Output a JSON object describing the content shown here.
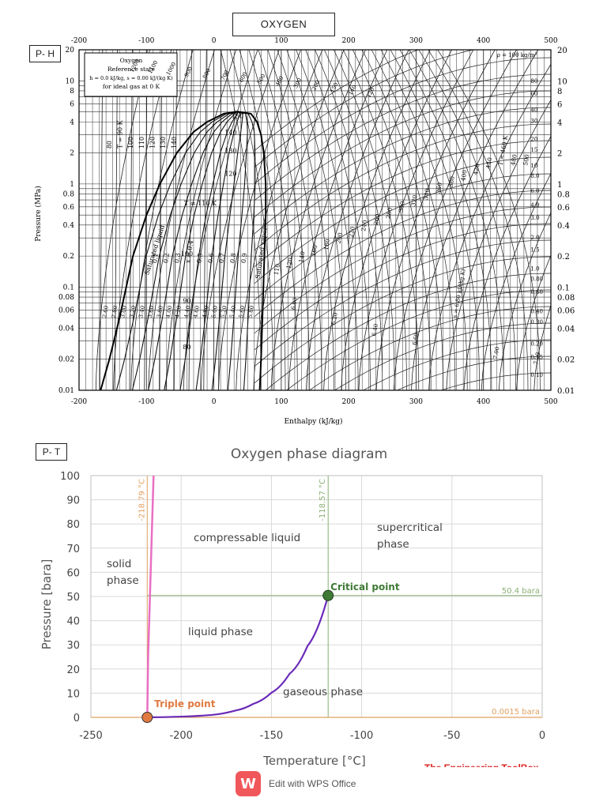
{
  "header": {
    "title": "OXYGEN"
  },
  "ph_label": "P- H",
  "pt_label": "P- T",
  "chart_data": [
    {
      "type": "line",
      "subtype": "pressure-enthalpy diagram",
      "xlabel": "Enthalpy (kJ/kg)",
      "ylabel": "Pressure (MPa)",
      "xlim": [
        -200,
        500
      ],
      "ylim": [
        0.01,
        20
      ],
      "yscale": "log",
      "grid": true,
      "x_ticks": [
        "-200",
        "-100",
        "0",
        "100",
        "200",
        "300",
        "400",
        "500"
      ],
      "y_ticks_left": [
        "0.01",
        "0.02",
        "0.04",
        "0.06",
        "0.08",
        "0.1",
        "0.2",
        "0.4",
        "0.6",
        "0.8",
        "1",
        "2",
        "4",
        "6",
        "8",
        "10",
        "20"
      ],
      "y_ticks_right": [
        "0.01",
        "0.02",
        "0.04",
        "0.06",
        "0.08",
        "0.1",
        "0.2",
        "0.4",
        "0.6",
        "0.8",
        "1",
        "2",
        "4",
        "6",
        "8",
        "10",
        "20"
      ],
      "legend_box": [
        "Oxygen",
        "Reference state",
        "h = 0.0 kJ/kg, s = 0.00 kJ/(kg K)",
        "for ideal gas at 0 K"
      ],
      "dome": {
        "liquid": [
          [
            -168,
            0.01
          ],
          [
            -155,
            0.02
          ],
          [
            -140,
            0.05
          ],
          [
            -120,
            0.2
          ],
          [
            -100,
            0.5
          ],
          [
            -80,
            1.0
          ],
          [
            -55,
            2.0
          ],
          [
            -30,
            3.2
          ],
          [
            -10,
            4.0
          ],
          [
            15,
            4.8
          ],
          [
            35,
            5.04
          ]
        ],
        "vapor": [
          [
            35,
            5.04
          ],
          [
            55,
            4.8
          ],
          [
            64,
            4.0
          ],
          [
            70,
            3.0
          ],
          [
            74,
            2.0
          ],
          [
            77,
            1.0
          ],
          [
            77,
            0.5
          ],
          [
            75,
            0.2
          ],
          [
            72,
            0.05
          ],
          [
            70,
            0.02
          ],
          [
            68,
            0.01
          ]
        ],
        "labels": [
          "Saturated liquid",
          "Saturated vapor"
        ],
        "critical_label": "150"
      },
      "isotherm_labels_in_dome": [
        "140",
        "130",
        "120",
        "T = 110 K",
        "100",
        "90",
        "80"
      ],
      "isotherm_labels_left": [
        "80",
        "T = 90 K",
        "100",
        "110",
        "120",
        "130",
        "140"
      ],
      "isotherm_labels_vapor": [
        "110",
        "120",
        "140",
        "160",
        "180",
        "200",
        "220",
        "240",
        "260",
        "280",
        "300",
        "320",
        "340",
        "360",
        "380",
        "400",
        "420",
        "440",
        "T = 460 K",
        "480",
        "500"
      ],
      "isotherm_labels_top": [
        "1200",
        "1100",
        "1000",
        "900",
        "800",
        "700",
        "600",
        "500",
        "400",
        "300",
        "200",
        "150",
        "140",
        "120"
      ],
      "quality_labels": [
        "0.1",
        "0.2",
        "0.3",
        "x = 0.4",
        "0.5",
        "0.6",
        "0.7",
        "0.8",
        "0.9"
      ],
      "entropy_labels": [
        "2.60",
        "2.80",
        "3.00",
        "3.20",
        "3.40",
        "3.60",
        "3.80",
        "4.00",
        "4.20",
        "4.40",
        "4.60",
        "4.80",
        "5.00",
        "5.20",
        "5.40",
        "5.60",
        "5.80",
        "6.00",
        "6.20",
        "6.40",
        "6.60",
        "s = 6.80 kJ/(kg K)",
        "7.00",
        "7.20"
      ],
      "density_labels": [
        "ρ = 100 kg/m³",
        "80",
        "60",
        "40",
        "30",
        "20",
        "15",
        "10",
        "8.0",
        "6.0",
        "4.0",
        "3.0",
        "2.0",
        "1.5",
        "1.0",
        "0.80",
        "0.60",
        "0.40",
        "0.30",
        "0.20",
        "0.15",
        "0.10"
      ]
    },
    {
      "type": "line",
      "title": "Oxygen phase diagram",
      "xlabel": "Temperature [°C]",
      "ylabel": "Pressure [bara]",
      "xlim": [
        -250,
        0
      ],
      "ylim": [
        0,
        100
      ],
      "grid": true,
      "x_ticks": [
        "-250",
        "-200",
        "-150",
        "-100",
        "-50",
        "0"
      ],
      "y_ticks": [
        "0",
        "10",
        "20",
        "30",
        "40",
        "50",
        "60",
        "70",
        "80",
        "90",
        "100"
      ],
      "series": [
        {
          "name": "sublimation/melting",
          "color": "#e86fc3",
          "x": [
            -218.79,
            -218.3,
            -217.3,
            -216.3,
            -215.3
          ],
          "y": [
            0.0015,
            25,
            50,
            75,
            100
          ]
        },
        {
          "name": "vaporization",
          "color": "#6a2bb8",
          "x": [
            -218.79,
            -200,
            -182.96,
            -170,
            -160,
            -150,
            -140,
            -130,
            -118.57
          ],
          "y": [
            0.0015,
            0.3,
            1.01,
            2.8,
            5.6,
            10.2,
            18.0,
            29.5,
            50.4
          ]
        }
      ],
      "reference_lines": [
        {
          "label": "-218.79 °C",
          "x": -218.79,
          "color": "#e0a060"
        },
        {
          "label": "-118.57 °C",
          "x": -118.57,
          "color": "#8aaf72"
        },
        {
          "label": "50.4 bara",
          "y": 50.4,
          "color": "#8aaf72"
        },
        {
          "label": "0.0015 bara",
          "y": 0,
          "color": "#e0a060"
        }
      ],
      "points": [
        {
          "label": "Triple point",
          "x": -218.79,
          "y": 0.0015,
          "color": "#e07a40"
        },
        {
          "label": "Critical point",
          "x": -118.57,
          "y": 50.4,
          "color": "#3f7a35"
        }
      ],
      "regions": [
        {
          "label": "solid phase",
          "lines": [
            "solid",
            "phase"
          ]
        },
        {
          "label": "compressable liquid",
          "lines": [
            "compressable liquid"
          ]
        },
        {
          "label": "supercritical phase",
          "lines": [
            "supercritical",
            "phase"
          ]
        },
        {
          "label": "liquid phase",
          "lines": [
            "liquid phase"
          ]
        },
        {
          "label": "gaseous phase",
          "lines": [
            "gaseous phase"
          ]
        }
      ]
    }
  ],
  "footer": {
    "wps_text": "Edit with WPS Office",
    "brand": "The Engineering ToolBox"
  }
}
